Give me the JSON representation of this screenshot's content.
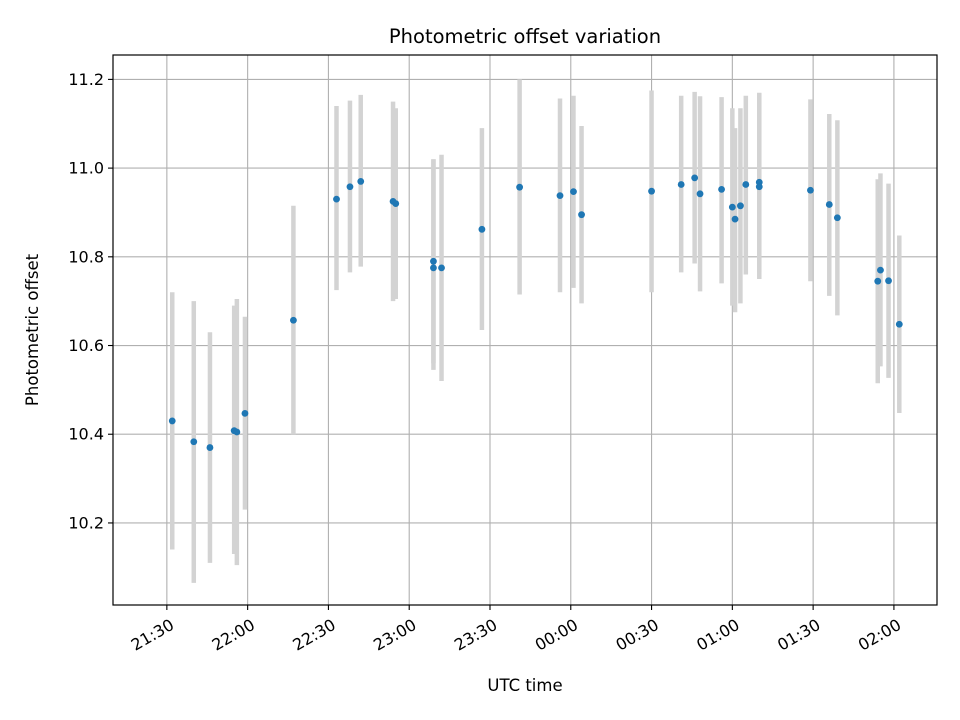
{
  "chart_data": {
    "type": "scatter",
    "title": "Photometric offset variation",
    "xlabel": "UTC time",
    "ylabel": "Photometric offset",
    "x_unit": "UTC, hours (times after midnight given as 24 + h)",
    "xlim": [
      "21:10",
      "02:16"
    ],
    "ylim": [
      10.015,
      11.255
    ],
    "x_ticks": [
      "21:30",
      "22:00",
      "22:30",
      "23:00",
      "23:30",
      "00:00",
      "00:30",
      "01:00",
      "01:30",
      "02:00"
    ],
    "y_ticks": [
      "10.2",
      "10.4",
      "10.6",
      "10.8",
      "11.0",
      "11.2"
    ],
    "grid": true,
    "marker_color": "#1f77b4",
    "errorbar_color": "#d3d3d3",
    "series": [
      {
        "points": [
          {
            "time": "21:32",
            "y": 10.43,
            "ylow": 10.14,
            "yhigh": 10.72
          },
          {
            "time": "21:40",
            "y": 10.383,
            "ylow": 10.065,
            "yhigh": 10.7
          },
          {
            "time": "21:46",
            "y": 10.37,
            "ylow": 10.11,
            "yhigh": 10.63
          },
          {
            "time": "21:55",
            "y": 10.408,
            "ylow": 10.13,
            "yhigh": 10.69
          },
          {
            "time": "21:56",
            "y": 10.405,
            "ylow": 10.105,
            "yhigh": 10.705
          },
          {
            "time": "21:59",
            "y": 10.447,
            "ylow": 10.23,
            "yhigh": 10.665
          },
          {
            "time": "22:17",
            "y": 10.657,
            "ylow": 10.4,
            "yhigh": 10.915
          },
          {
            "time": "22:33",
            "y": 10.93,
            "ylow": 10.725,
            "yhigh": 11.14
          },
          {
            "time": "22:38",
            "y": 10.958,
            "ylow": 10.765,
            "yhigh": 11.152
          },
          {
            "time": "22:42",
            "y": 10.97,
            "ylow": 10.778,
            "yhigh": 11.165
          },
          {
            "time": "22:54",
            "y": 10.925,
            "ylow": 10.7,
            "yhigh": 11.15
          },
          {
            "time": "22:55",
            "y": 10.92,
            "ylow": 10.705,
            "yhigh": 11.135
          },
          {
            "time": "23:09",
            "y": 10.79,
            "ylow": 10.56,
            "yhigh": 11.02
          },
          {
            "time": "23:09",
            "y": 10.775,
            "ylow": 10.545,
            "yhigh": 11.02
          },
          {
            "time": "23:12",
            "y": 10.775,
            "ylow": 10.52,
            "yhigh": 11.03
          },
          {
            "time": "23:27",
            "y": 10.862,
            "ylow": 10.635,
            "yhigh": 11.09
          },
          {
            "time": "23:41",
            "y": 10.957,
            "ylow": 10.715,
            "yhigh": 11.2
          },
          {
            "time": "23:56",
            "y": 10.938,
            "ylow": 10.72,
            "yhigh": 11.157
          },
          {
            "time": "00:01",
            "y": 10.947,
            "ylow": 10.73,
            "yhigh": 11.163
          },
          {
            "time": "00:04",
            "y": 10.895,
            "ylow": 10.695,
            "yhigh": 11.095
          },
          {
            "time": "00:30",
            "y": 10.948,
            "ylow": 10.72,
            "yhigh": 11.175
          },
          {
            "time": "00:41",
            "y": 10.963,
            "ylow": 10.765,
            "yhigh": 11.163
          },
          {
            "time": "00:46",
            "y": 10.978,
            "ylow": 10.785,
            "yhigh": 11.172
          },
          {
            "time": "00:48",
            "y": 10.942,
            "ylow": 10.722,
            "yhigh": 11.162
          },
          {
            "time": "00:56",
            "y": 10.952,
            "ylow": 10.74,
            "yhigh": 11.16
          },
          {
            "time": "01:00",
            "y": 10.912,
            "ylow": 10.69,
            "yhigh": 11.135
          },
          {
            "time": "01:01",
            "y": 10.885,
            "ylow": 10.675,
            "yhigh": 11.09
          },
          {
            "time": "01:03",
            "y": 10.915,
            "ylow": 10.695,
            "yhigh": 11.135
          },
          {
            "time": "01:05",
            "y": 10.963,
            "ylow": 10.76,
            "yhigh": 11.163
          },
          {
            "time": "01:10",
            "y": 10.968,
            "ylow": 10.765,
            "yhigh": 11.17
          },
          {
            "time": "01:10",
            "y": 10.958,
            "ylow": 10.75,
            "yhigh": 11.168
          },
          {
            "time": "01:29",
            "y": 10.95,
            "ylow": 10.745,
            "yhigh": 11.155
          },
          {
            "time": "01:36",
            "y": 10.918,
            "ylow": 10.712,
            "yhigh": 11.122
          },
          {
            "time": "01:39",
            "y": 10.888,
            "ylow": 10.668,
            "yhigh": 11.108
          },
          {
            "time": "01:54",
            "y": 10.745,
            "ylow": 10.515,
            "yhigh": 10.975
          },
          {
            "time": "01:55",
            "y": 10.77,
            "ylow": 10.553,
            "yhigh": 10.988
          },
          {
            "time": "01:58",
            "y": 10.746,
            "ylow": 10.527,
            "yhigh": 10.965
          },
          {
            "time": "02:02",
            "y": 10.648,
            "ylow": 10.448,
            "yhigh": 10.848
          }
        ]
      }
    ]
  }
}
